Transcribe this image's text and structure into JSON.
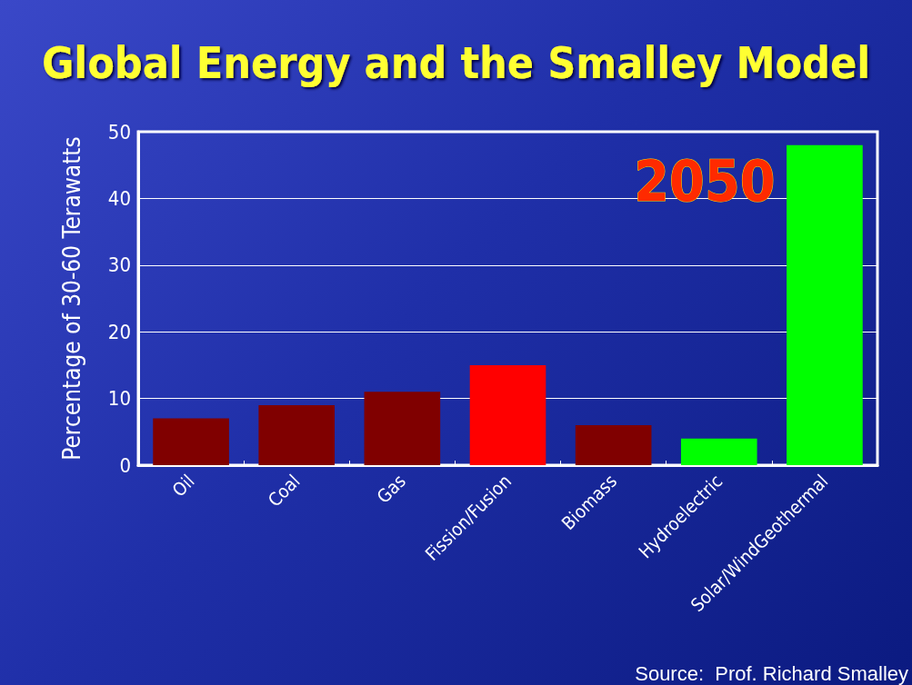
{
  "chart_data": {
    "type": "bar",
    "title": "Global Energy and the Smalley Model",
    "ylabel": "Percentage of 30-60 Terawatts",
    "categories": [
      "Oil",
      "Coal",
      "Gas",
      "Fission/Fusion",
      "Biomass",
      "Hydroelectric",
      "Solar/WindGeothermal"
    ],
    "values": [
      7,
      9,
      11,
      15,
      6,
      4,
      48
    ],
    "colors": [
      "#800000",
      "#800000",
      "#800000",
      "#ff0000",
      "#800000",
      "#00ff00",
      "#00ff00"
    ],
    "ylim": [
      0,
      50
    ],
    "yticks": [
      0,
      10,
      20,
      30,
      40,
      50
    ],
    "grid": "y",
    "annotations": [
      "2050",
      "Source:  Prof. Richard Smalley"
    ]
  }
}
